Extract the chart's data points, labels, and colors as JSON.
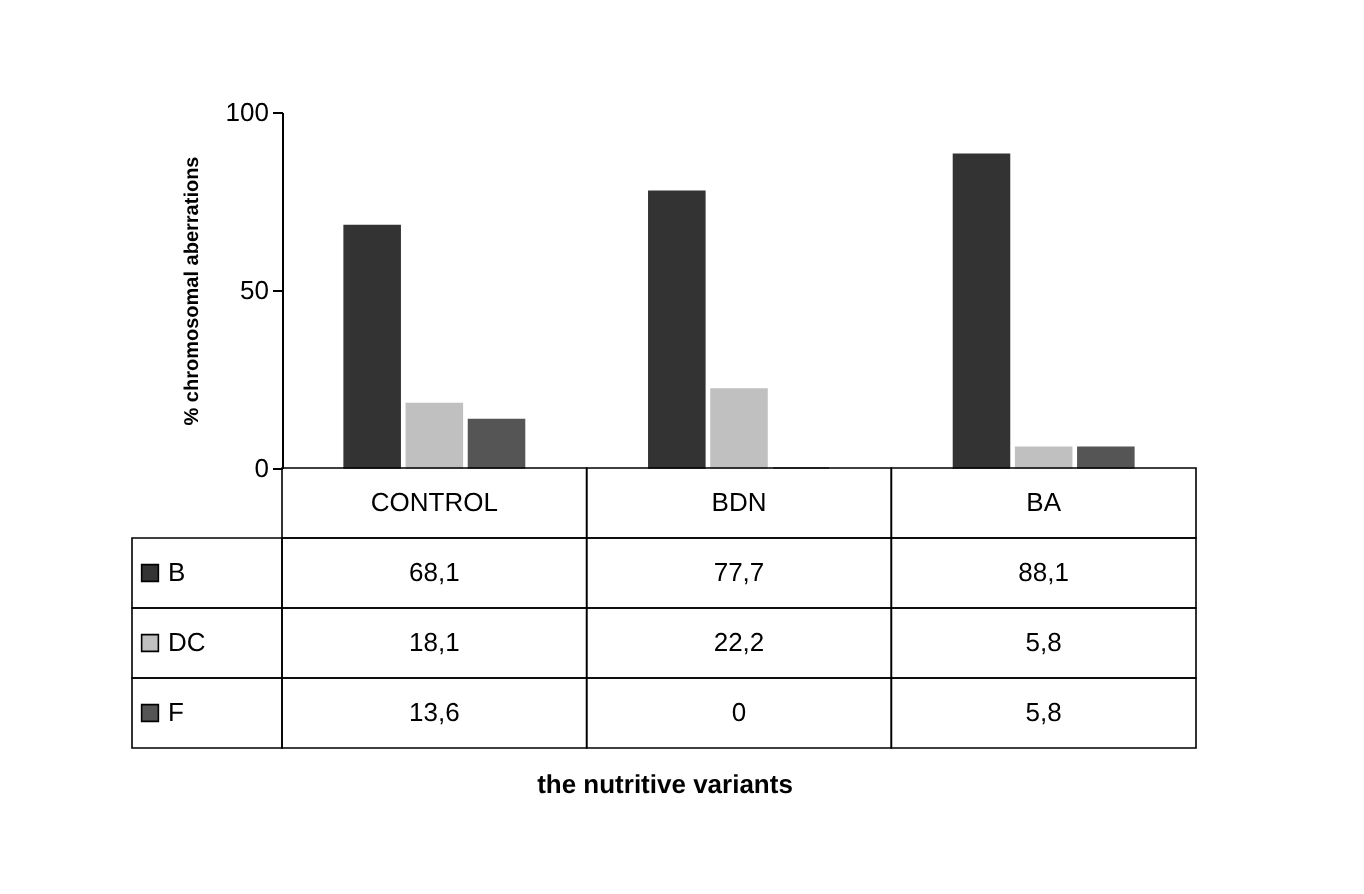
{
  "chart_data": {
    "type": "bar",
    "annotations": [
      "the nutritive variants"
    ],
    "ylabel": "% chromosomal aberrations",
    "categories": [
      "CONTROL",
      "BDN",
      "BA"
    ],
    "series": [
      {
        "name": "B",
        "color": "#333333",
        "values": [
          68.1,
          77.7,
          88.1
        ],
        "value_labels": [
          "68,1",
          "77,7",
          "88,1"
        ]
      },
      {
        "name": "DC",
        "color": "#c0c0c0",
        "values": [
          18.1,
          22.2,
          5.8
        ],
        "value_labels": [
          "18,1",
          "22,2",
          "5,8"
        ]
      },
      {
        "name": "F",
        "color": "#555555",
        "values": [
          13.6,
          0,
          5.8
        ],
        "value_labels": [
          "13,6",
          "0",
          "5,8"
        ]
      }
    ],
    "ylim": [
      0,
      100
    ],
    "yticks": [
      0,
      50,
      100
    ],
    "legend": "bottom left"
  }
}
